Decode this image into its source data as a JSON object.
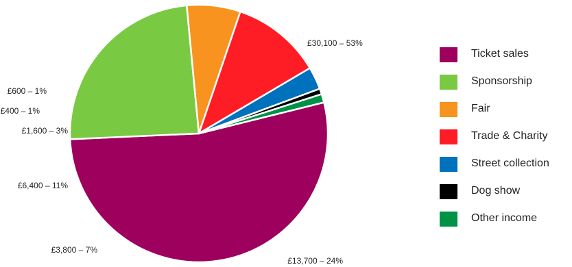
{
  "chart_data": {
    "type": "pie",
    "title": "",
    "legend_position": "right",
    "slices": [
      {
        "name": "Ticket sales",
        "value": 30100,
        "percent": 53,
        "label": "£30,100 – 53%",
        "color": "#9e005d"
      },
      {
        "name": "Sponsorship",
        "value": 13700,
        "percent": 24,
        "label": "£13,700 – 24%",
        "color": "#7ac943"
      },
      {
        "name": "Fair",
        "value": 3800,
        "percent": 7,
        "label": "£3,800 – 7%",
        "color": "#f7931e"
      },
      {
        "name": "Trade & Charity",
        "value": 6400,
        "percent": 11,
        "label": "£6,400 – 11%",
        "color": "#ff1d25"
      },
      {
        "name": "Street collection",
        "value": 1600,
        "percent": 3,
        "label": "£1,600 – 3%",
        "color": "#0071bc"
      },
      {
        "name": "Dog show",
        "value": 400,
        "percent": 1,
        "label": "£400 – 1%",
        "color": "#000000"
      },
      {
        "name": "Other income",
        "value": 600,
        "percent": 1,
        "label": "£600 – 1%",
        "color": "#009245"
      }
    ]
  }
}
